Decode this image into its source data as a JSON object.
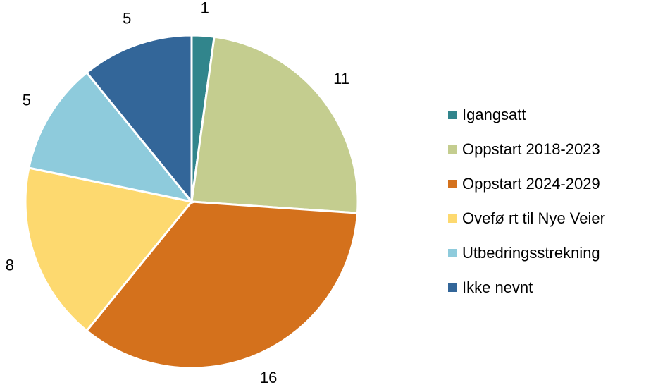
{
  "chart_data": {
    "type": "pie",
    "categories": [
      "Igangsatt",
      "Oppstart 2018-2023",
      "Oppstart 2024-2029",
      "Ovefø rt til Nye Veier",
      "Utbedringsstrekning",
      "Ikke nevnt"
    ],
    "values": [
      1,
      11,
      16,
      8,
      5,
      5
    ],
    "colors": [
      "#31858c",
      "#c4cd8f",
      "#d4711c",
      "#fdd96f",
      "#8ecbdc",
      "#336699"
    ],
    "legend": "right"
  }
}
